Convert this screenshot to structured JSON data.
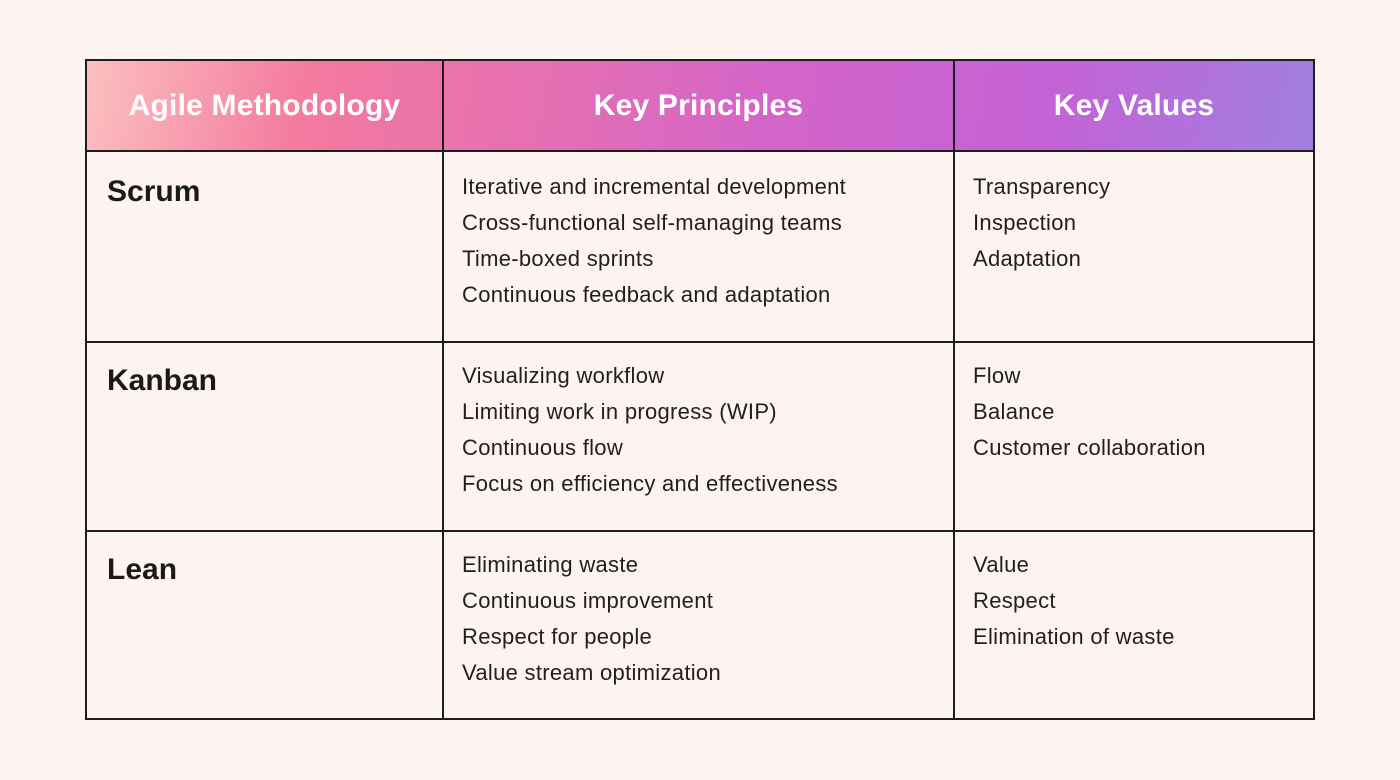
{
  "table": {
    "headers": [
      "Agile Methodology",
      "Key Principles",
      "Key Values"
    ],
    "rows": [
      {
        "method": "Scrum",
        "principles": [
          "Iterative and incremental development",
          "Cross-functional self-managing teams",
          "Time-boxed sprints",
          "Continuous feedback and adaptation"
        ],
        "values": [
          "Transparency",
          "Inspection",
          "Adaptation"
        ]
      },
      {
        "method": "Kanban",
        "principles": [
          "Visualizing workflow",
          "Limiting work in progress (WIP)",
          "Continuous flow",
          "Focus on efficiency and effectiveness"
        ],
        "values": [
          "Flow",
          "Balance",
          "Customer collaboration"
        ]
      },
      {
        "method": "Lean",
        "principles": [
          "Eliminating waste",
          "Continuous improvement",
          "Respect for people",
          "Value stream optimization"
        ],
        "values": [
          "Value",
          "Respect",
          "Elimination of waste"
        ]
      }
    ]
  },
  "colors": {
    "background": "#fdf3f1",
    "border": "#1e1e1e",
    "header_gradient_start": "#fbc0bf",
    "header_gradient_mid": "#d465c8",
    "header_gradient_end": "#a07fde",
    "header_text": "#ffffff"
  }
}
